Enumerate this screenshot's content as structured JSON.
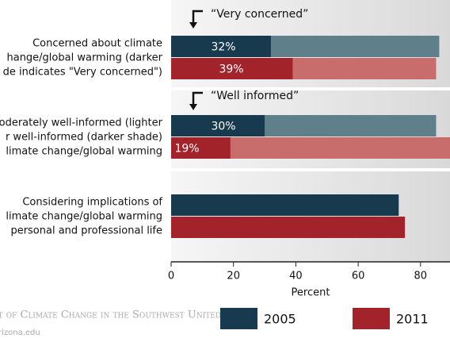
{
  "chart_data": {
    "type": "bar",
    "orientation": "horizontal",
    "categories": [
      [
        "Concerned about climate",
        "hange/global warming (darker",
        "de indicates \"Very concerned\")"
      ],
      [
        "oderately well-informed (lighter",
        "r well-informed (darker shade)",
        "limate change/global warming"
      ],
      [
        "Considering implications of",
        "limate change/global warming",
        "personal and professional life"
      ]
    ],
    "annotations": [
      "“Very concerned”",
      "“Well informed”"
    ],
    "series": [
      {
        "name": "2005",
        "color": "#173a4e",
        "light_color": "#5f7f8b",
        "values": [
          86,
          85,
          73
        ],
        "highlight": [
          32,
          30,
          null
        ],
        "highlight_labels": [
          "32%",
          "30%",
          null
        ]
      },
      {
        "name": "2011",
        "color": "#a3232a",
        "light_color": "#c86d6b",
        "values": [
          85,
          91,
          75
        ],
        "highlight": [
          39,
          19,
          null
        ],
        "highlight_labels": [
          "39%",
          "19%",
          null
        ]
      }
    ],
    "xlabel": "Percent",
    "xlim": [
      0,
      90
    ],
    "xticks": [
      0,
      20,
      40,
      60,
      80
    ],
    "footer": [
      "it of Climate Change in the Southwest United States",
      "rizona.edu"
    ]
  }
}
